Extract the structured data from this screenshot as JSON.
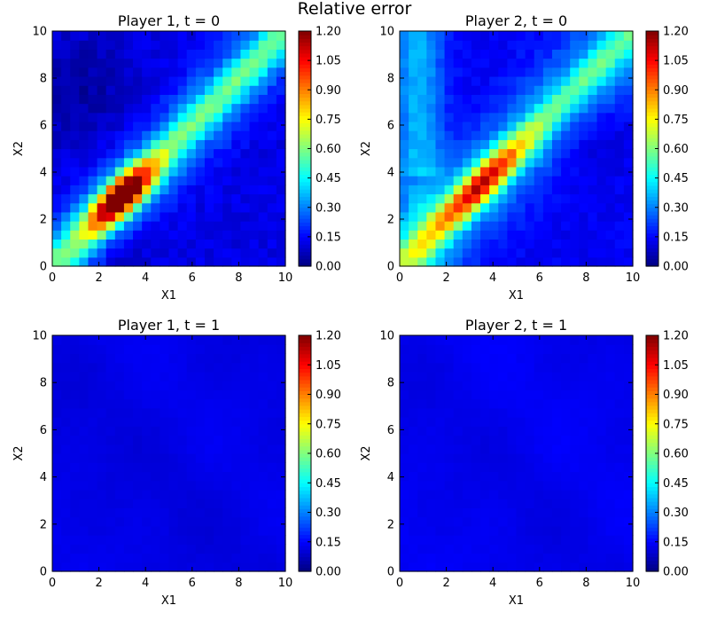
{
  "figure": {
    "title": "Relative error"
  },
  "chart_data": [
    {
      "type": "heatmap",
      "title": "Player 1, t = 0",
      "xlabel": "X1",
      "ylabel": "X2",
      "xlim": [
        0,
        10
      ],
      "ylim": [
        0,
        10
      ],
      "xticks": [
        "0",
        "2",
        "4",
        "6",
        "8",
        "10"
      ],
      "yticks": [
        "0",
        "2",
        "4",
        "6",
        "8",
        "10"
      ],
      "grid_size": 26,
      "colormap": "jet",
      "vmin": 0.0,
      "vmax": 1.2,
      "colorbar_ticks": [
        "0.00",
        "0.15",
        "0.30",
        "0.45",
        "0.60",
        "0.75",
        "0.90",
        "1.05",
        "1.20"
      ],
      "field": {
        "kind": "player1_t0"
      }
    },
    {
      "type": "heatmap",
      "title": "Player 2, t = 0",
      "xlabel": "X1",
      "ylabel": "X2",
      "xlim": [
        0,
        10
      ],
      "ylim": [
        0,
        10
      ],
      "xticks": [
        "0",
        "2",
        "4",
        "6",
        "8",
        "10"
      ],
      "yticks": [
        "0",
        "2",
        "4",
        "6",
        "8",
        "10"
      ],
      "grid_size": 26,
      "colormap": "jet",
      "vmin": 0.0,
      "vmax": 1.2,
      "colorbar_ticks": [
        "0.00",
        "0.15",
        "0.30",
        "0.45",
        "0.60",
        "0.75",
        "0.90",
        "1.05",
        "1.20"
      ],
      "field": {
        "kind": "player2_t0"
      }
    },
    {
      "type": "heatmap",
      "title": "Player 1, t = 1",
      "xlabel": "X1",
      "ylabel": "X2",
      "xlim": [
        0,
        10
      ],
      "ylim": [
        0,
        10
      ],
      "xticks": [
        "0",
        "2",
        "4",
        "6",
        "8",
        "10"
      ],
      "yticks": [
        "0",
        "2",
        "4",
        "6",
        "8",
        "10"
      ],
      "grid_size": 26,
      "colormap": "jet",
      "vmin": 0.0,
      "vmax": 1.2,
      "colorbar_ticks": [
        "0.00",
        "0.15",
        "0.30",
        "0.45",
        "0.60",
        "0.75",
        "0.90",
        "1.05",
        "1.20"
      ],
      "field": {
        "kind": "low",
        "base": 0.12,
        "range": 0.04
      }
    },
    {
      "type": "heatmap",
      "title": "Player 2, t = 1",
      "xlabel": "X1",
      "ylabel": "X2",
      "xlim": [
        0,
        10
      ],
      "ylim": [
        0,
        10
      ],
      "xticks": [
        "0",
        "2",
        "4",
        "6",
        "8",
        "10"
      ],
      "yticks": [
        "0",
        "2",
        "4",
        "6",
        "8",
        "10"
      ],
      "grid_size": 26,
      "colormap": "jet",
      "vmin": 0.0,
      "vmax": 1.2,
      "colorbar_ticks": [
        "0.00",
        "0.15",
        "0.30",
        "0.45",
        "0.60",
        "0.75",
        "0.90",
        "1.05",
        "1.20"
      ],
      "field": {
        "kind": "low",
        "base": 0.13,
        "range": 0.04
      }
    }
  ]
}
